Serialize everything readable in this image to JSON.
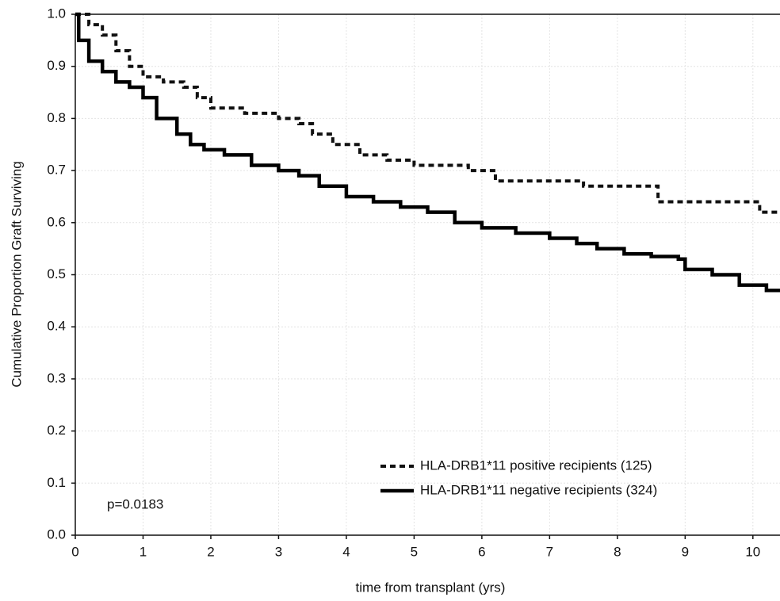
{
  "chart_data": {
    "type": "line",
    "xlabel": "time from transplant (yrs)",
    "ylabel": "Cumulative Proportion Graft Surviving",
    "annotation": "p=0.0183",
    "xlim": [
      0,
      10.4
    ],
    "ylim": [
      0,
      1
    ],
    "xticks": [
      0,
      1,
      2,
      3,
      4,
      5,
      6,
      7,
      8,
      9,
      10
    ],
    "yticks": [
      {
        "value": 0,
        "label": "0.0"
      },
      0.1,
      0.2,
      0.3,
      0.4,
      0.5,
      0.6,
      0.7,
      0.8,
      0.9,
      {
        "value": 1,
        "label": "1.0"
      }
    ],
    "grid": true,
    "legend": "lower right",
    "series": [
      {
        "name": "HLA-DRB1*11 positive recipients (125)",
        "color": "#111111",
        "line_style": "dashed",
        "x": [
          0,
          0.2,
          0.4,
          0.6,
          0.8,
          1.0,
          1.3,
          1.6,
          1.8,
          2.0,
          2.5,
          3.0,
          3.3,
          3.5,
          3.8,
          4.2,
          4.6,
          5.0,
          5.6,
          5.8,
          6.2,
          7.0,
          7.5,
          8.4,
          8.6,
          9.0,
          10.0,
          10.1,
          10.4
        ],
        "values": [
          1.0,
          0.98,
          0.96,
          0.93,
          0.9,
          0.88,
          0.87,
          0.86,
          0.84,
          0.82,
          0.81,
          0.8,
          0.79,
          0.77,
          0.75,
          0.73,
          0.72,
          0.71,
          0.71,
          0.7,
          0.68,
          0.68,
          0.67,
          0.67,
          0.64,
          0.64,
          0.64,
          0.62,
          0.62
        ]
      },
      {
        "name": "HLA-DRB1*11 negative recipients (324)",
        "color": "#000000",
        "line_style": "solid",
        "x": [
          0,
          0.05,
          0.2,
          0.4,
          0.6,
          0.8,
          1.0,
          1.2,
          1.5,
          1.7,
          1.9,
          2.2,
          2.6,
          3.0,
          3.3,
          3.6,
          4.0,
          4.4,
          4.8,
          5.2,
          5.6,
          6.0,
          6.5,
          7.0,
          7.4,
          7.7,
          8.1,
          8.5,
          8.9,
          9.0,
          9.4,
          9.8,
          10.2,
          10.4
        ],
        "values": [
          1.0,
          0.95,
          0.91,
          0.89,
          0.87,
          0.86,
          0.84,
          0.8,
          0.77,
          0.75,
          0.74,
          0.73,
          0.71,
          0.7,
          0.69,
          0.67,
          0.65,
          0.64,
          0.63,
          0.62,
          0.6,
          0.59,
          0.58,
          0.57,
          0.56,
          0.55,
          0.54,
          0.535,
          0.53,
          0.51,
          0.5,
          0.48,
          0.47,
          0.47
        ]
      }
    ]
  }
}
